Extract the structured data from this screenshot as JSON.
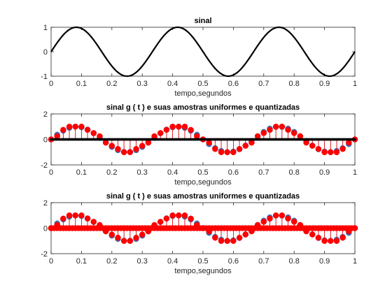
{
  "chart_data": [
    {
      "type": "line",
      "title": "sinal",
      "xlabel": "tempo,segundos",
      "ylabel": "",
      "xlim": [
        0,
        1
      ],
      "ylim": [
        -1,
        1
      ],
      "xticks": [
        "0",
        "0.1",
        "0.2",
        "0.3",
        "0.4",
        "0.5",
        "0.6",
        "0.7",
        "0.8",
        "0.9",
        "1"
      ],
      "yticks": [
        "-1",
        "0",
        "1"
      ],
      "grid": false,
      "series": [
        {
          "function": "sin(2*pi*3*t)",
          "frequency_hz": 3,
          "amplitude": 1,
          "t_range": [
            0,
            1
          ],
          "color": "#000000"
        }
      ]
    },
    {
      "type": "scatter",
      "title": "sinal g ( t ) e suas amostras uniformes e quantizadas",
      "xlabel": "tempo,segundos",
      "ylabel": "",
      "xlim": [
        0,
        1
      ],
      "ylim": [
        -2,
        2
      ],
      "xticks": [
        "0",
        "0.1",
        "0.2",
        "0.3",
        "0.4",
        "0.5",
        "0.6",
        "0.7",
        "0.8",
        "0.9",
        "1"
      ],
      "yticks": [
        "-2",
        "0",
        "2"
      ],
      "grid": false,
      "series": [
        {
          "style": "stem",
          "function": "sin(2*pi*3*t)",
          "sample_interval": 0.02,
          "color": "#3d6fb6"
        },
        {
          "style": "stem",
          "function": "round(4*sin(2*pi*3*t))/4",
          "sample_interval": 0.02,
          "color": "#ff0000"
        },
        {
          "style": "stem",
          "function": "0",
          "sample_interval": 0.0025,
          "color": "#000000"
        }
      ]
    },
    {
      "type": "scatter",
      "title": "sinal g ( t ) e suas amostras uniformes e quantizadas",
      "xlabel": "tempo,segundos",
      "ylabel": "",
      "xlim": [
        0,
        1
      ],
      "ylim": [
        -2,
        2
      ],
      "xticks": [
        "0",
        "0.1",
        "0.2",
        "0.3",
        "0.4",
        "0.5",
        "0.6",
        "0.7",
        "0.8",
        "0.9",
        "1"
      ],
      "yticks": [
        "-2",
        "0",
        "2"
      ],
      "grid": false,
      "series": [
        {
          "style": "stem",
          "function": "sin(2*pi*3*t)",
          "sample_interval": 0.02,
          "color": "#3d6fb6"
        },
        {
          "style": "stem",
          "function": "round(4*sin(2*pi*3*t))/4",
          "sample_interval": 0.02,
          "color": "#ff0000"
        },
        {
          "style": "stem",
          "function": "0",
          "sample_interval": 0.01,
          "color": "#ff0000"
        }
      ]
    }
  ]
}
